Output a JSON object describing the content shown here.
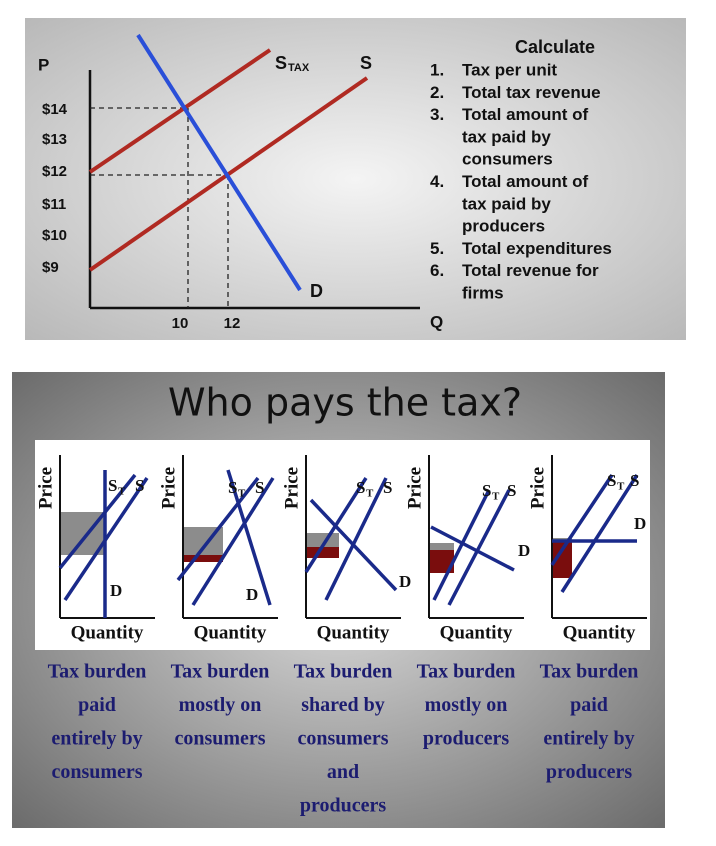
{
  "top": {
    "axis_labels": {
      "y": "P",
      "x": "Q"
    },
    "y_tick_labels": [
      "$14",
      "$13",
      "$12",
      "$11",
      "$10",
      "$9"
    ],
    "x_tick_labels": [
      "10",
      "12"
    ],
    "curve_labels": {
      "s_tax": "S",
      "s_tax_sub": "TAX",
      "s": "S",
      "d": "D"
    },
    "list_title": "Calculate",
    "list": [
      {
        "number": "1.",
        "lines": [
          "Tax per unit"
        ]
      },
      {
        "number": "2.",
        "lines": [
          "Total tax revenue"
        ]
      },
      {
        "number": "3.",
        "lines": [
          "Total amount of",
          "tax paid by",
          "consumers"
        ]
      },
      {
        "number": "4.",
        "lines": [
          "Total amount of",
          "tax paid by",
          "producers"
        ]
      },
      {
        "number": "5.",
        "lines": [
          "Total expenditures"
        ]
      },
      {
        "number": "6.",
        "lines": [
          "Total revenue for",
          "firms"
        ]
      }
    ]
  },
  "bottom": {
    "title": "Who pays the tax?",
    "panels": [
      {
        "y_label": "Price",
        "x_label": "Quantity",
        "s_t": "S",
        "s_t_sub": "T",
        "s": "S",
        "d": "D",
        "caption": [
          "Tax burden",
          "paid",
          "entirely by",
          "consumers"
        ]
      },
      {
        "y_label": "Price",
        "x_label": "Quantity",
        "s_t": "S",
        "s_t_sub": "T",
        "s": "S",
        "d": "D",
        "caption": [
          "Tax burden",
          "mostly on",
          "consumers"
        ]
      },
      {
        "y_label": "Price",
        "x_label": "Quantity",
        "s_t": "S",
        "s_t_sub": "T",
        "s": "S",
        "d": "D",
        "caption": [
          "Tax burden",
          "shared by",
          "consumers",
          "and",
          "producers"
        ]
      },
      {
        "y_label": "Price",
        "x_label": "Quantity",
        "s_t": "S",
        "s_t_sub": "T",
        "s": "S",
        "d": "D",
        "caption": [
          "Tax burden",
          "mostly on",
          "producers"
        ]
      },
      {
        "y_label": "Price",
        "x_label": "Quantity",
        "s_t": "S",
        "s_t_sub": "T",
        "s": "S",
        "d": "D",
        "caption": [
          "Tax burden",
          "paid",
          "entirely by",
          "producers"
        ]
      }
    ]
  }
}
